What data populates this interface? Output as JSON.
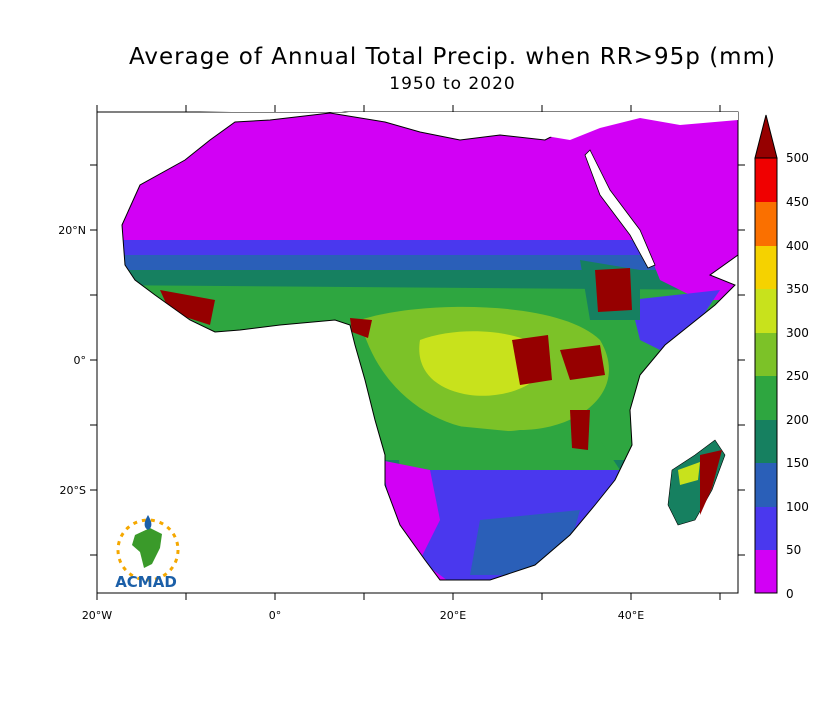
{
  "title": "Average of Annual Total Precip. when RR>95p (mm)",
  "subtitle": "1950 to 2020",
  "map": {
    "region": "Africa",
    "lon_range": [
      -20,
      52
    ],
    "lat_range": [
      -35,
      38
    ]
  },
  "axes": {
    "x_ticks": [
      {
        "lon": -20,
        "label": "20°W"
      },
      {
        "lon": 0,
        "label": "0°"
      },
      {
        "lon": 20,
        "label": "20°E"
      },
      {
        "lon": 40,
        "label": "40°E"
      }
    ],
    "y_ticks": [
      {
        "lat": 20,
        "label": "20°N"
      },
      {
        "lat": 0,
        "label": "0°"
      },
      {
        "lat": -20,
        "label": "20°S"
      }
    ]
  },
  "legend": {
    "levels": [
      "0",
      "50",
      "100",
      "150",
      "200",
      "250",
      "300",
      "350",
      "400",
      "450",
      "500"
    ],
    "colors": [
      "#d200f5",
      "#4a38ee",
      "#2a5fb8",
      "#168060",
      "#2ea640",
      "#7cc228",
      "#c8e21c",
      "#f5d200",
      "#fa7000",
      "#f00000",
      "#960000"
    ]
  },
  "logo": {
    "text": "ACMAD"
  },
  "colors": {
    "dry": "#d200f5",
    "low": "#4a38ee",
    "medium": "#2a5fb8",
    "moderate": "#168060",
    "wet": "#2ea640",
    "very_wet": "#7cc228",
    "high": "#c8e21c",
    "extreme": "#960000"
  }
}
